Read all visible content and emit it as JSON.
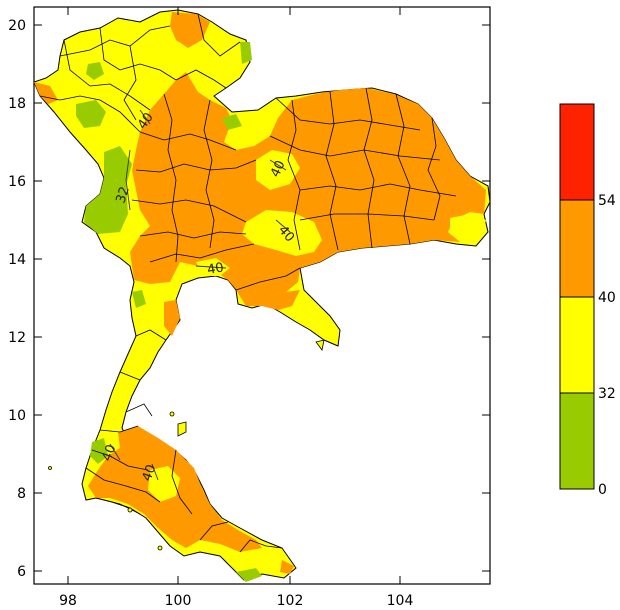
{
  "map": {
    "x_ticks": [
      "98",
      "100",
      "102",
      "104"
    ],
    "y_ticks": [
      "20",
      "18",
      "16",
      "14",
      "12",
      "10",
      "8",
      "6"
    ],
    "contour_labels": [
      "32",
      "40",
      "40",
      "40",
      "40",
      "40",
      "40"
    ]
  },
  "legend": {
    "labels": [
      "54",
      "40",
      "32",
      "0"
    ],
    "classes": [
      {
        "color": "#ff2200"
      },
      {
        "color": "#ff9900"
      },
      {
        "color": "#ffff00"
      },
      {
        "color": "#99cc00"
      }
    ]
  },
  "colors": {
    "orange": "#ff9900",
    "yellow": "#ffff00",
    "green": "#99cc00",
    "red": "#ff2200"
  }
}
